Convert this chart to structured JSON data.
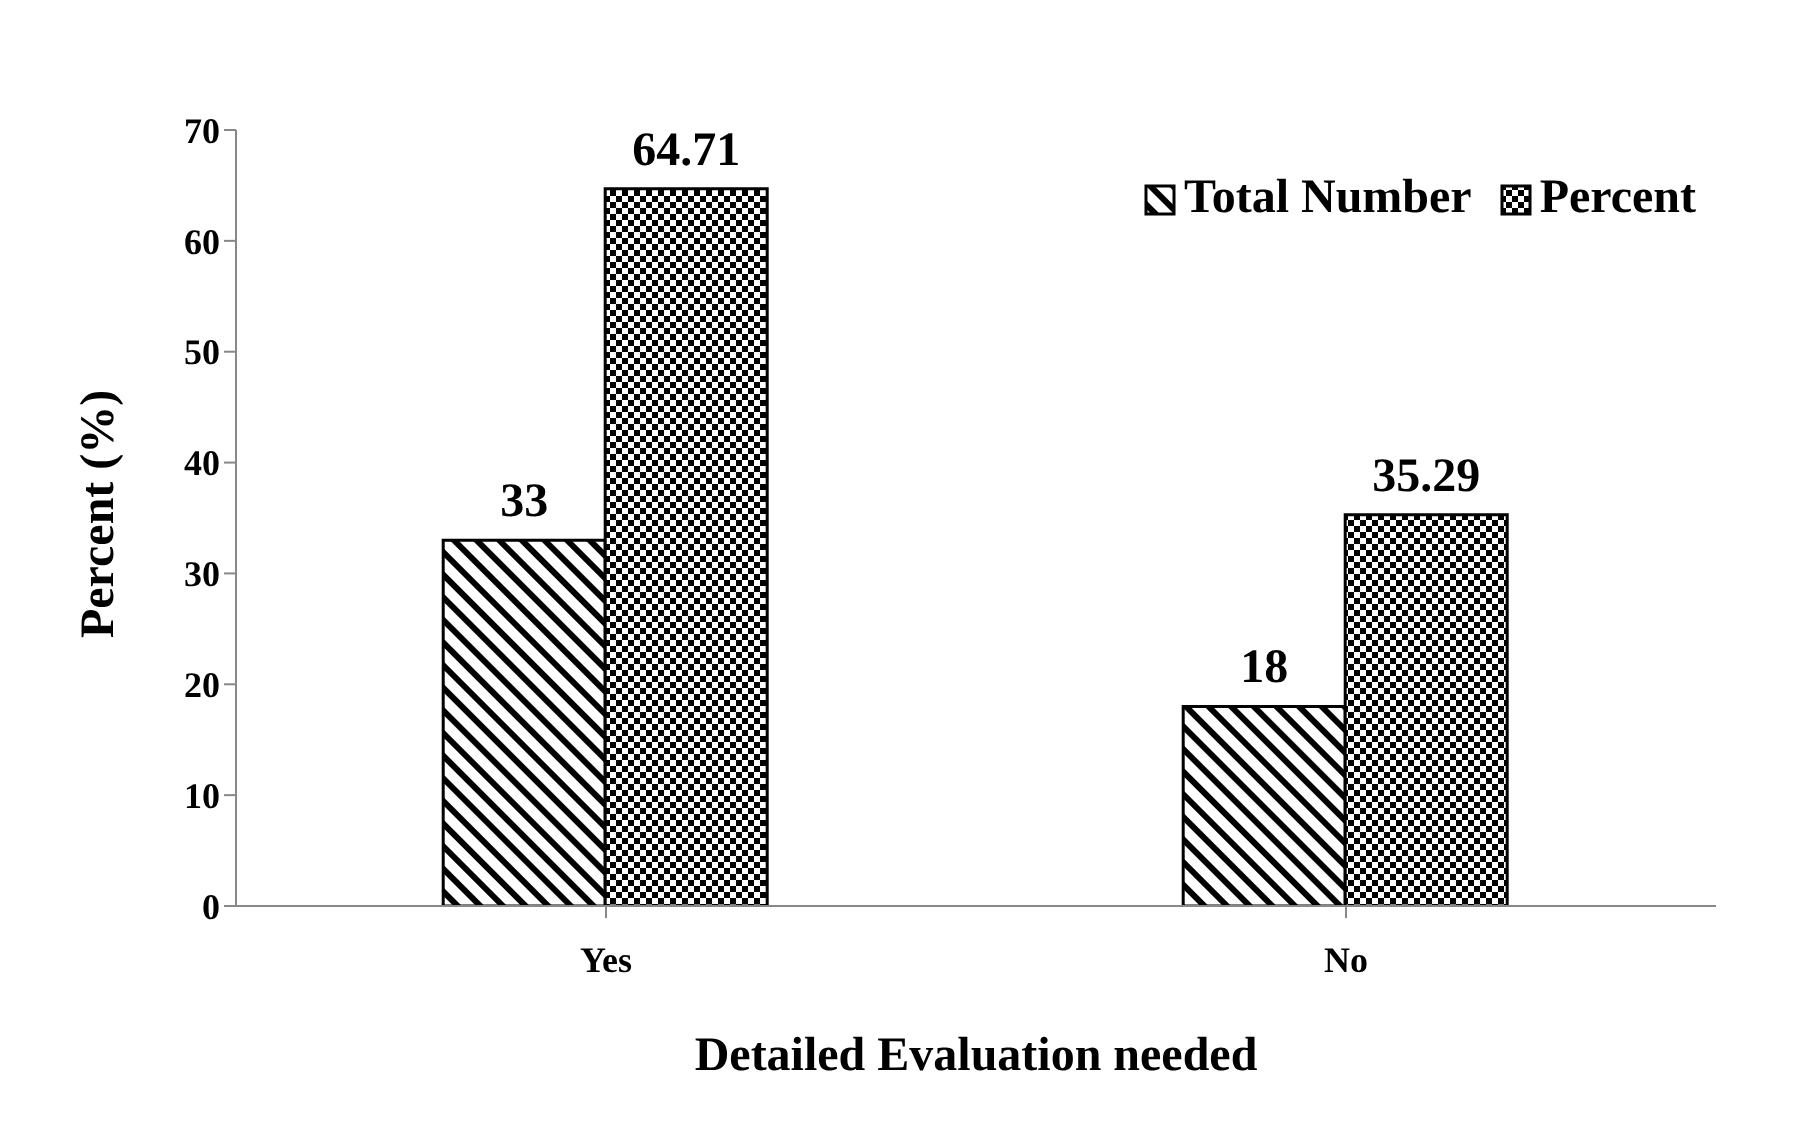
{
  "chart_data": {
    "type": "bar",
    "xlabel": "Detailed Evaluation needed",
    "ylabel": "Percent (%)",
    "categories": [
      "Yes",
      "No"
    ],
    "series": [
      {
        "name": "Total Number",
        "color": "#000000",
        "values": [
          33,
          18
        ]
      },
      {
        "name": "Percent",
        "color": "#000000",
        "values": [
          64.71,
          35.29
        ]
      }
    ],
    "ylim": [
      0,
      70
    ],
    "yticks": [
      0,
      10,
      20,
      30,
      40,
      50,
      60,
      70
    ],
    "grid": false,
    "legend": "top right",
    "data_labels": true
  }
}
